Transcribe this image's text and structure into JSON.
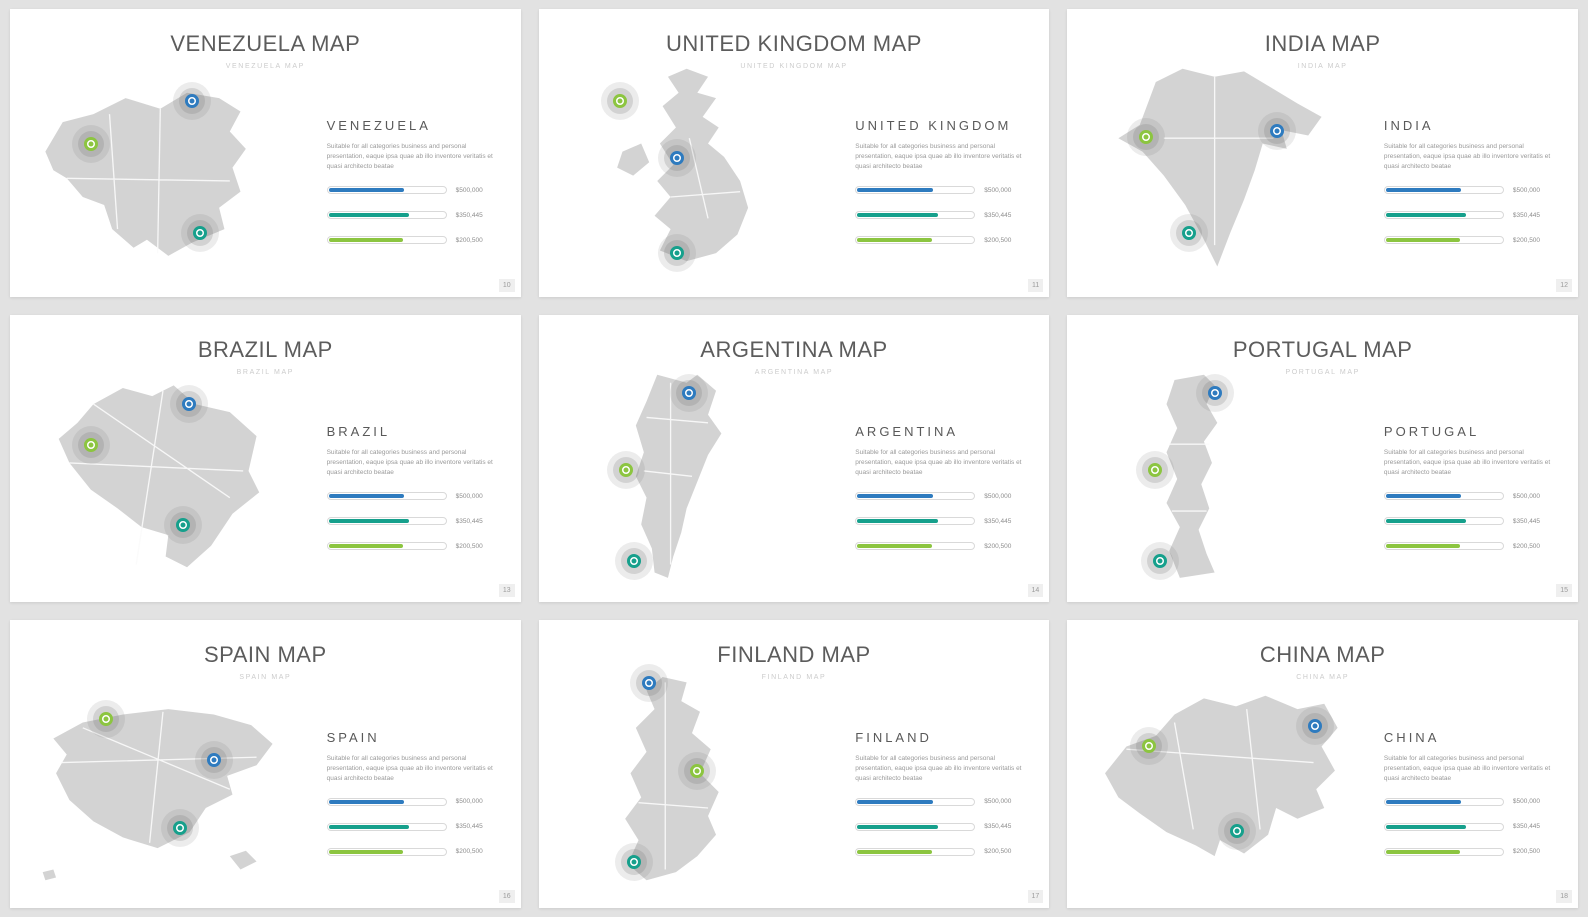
{
  "page": {
    "background": "#e2e2e2"
  },
  "shared": {
    "description": "Suitable for all categories business and personal presentation, eaque ipsa quae ab illo inventore veritatis et quasi architecto beatae",
    "bars": [
      {
        "value": "$500,000",
        "color": "#2e7bbf",
        "percent": 64
      },
      {
        "value": "$350,445",
        "color": "#16a08c",
        "percent": 68
      },
      {
        "value": "$200,500",
        "color": "#8cc540",
        "percent": 63
      }
    ],
    "marker_colors": {
      "blue": "#2e7bbf",
      "teal": "#16a08c",
      "green": "#8cc540"
    }
  },
  "slides": [
    {
      "id": "venezuela",
      "title": "VENEZUELA MAP",
      "subtitle": "VENEZUELA MAP",
      "country": "VENEZUELA",
      "page_number": "10",
      "markers": [
        {
          "color": "blue",
          "x": 60,
          "y": 19
        },
        {
          "color": "green",
          "x": 25,
          "y": 38
        },
        {
          "color": "teal",
          "x": 63,
          "y": 77
        }
      ]
    },
    {
      "id": "uk",
      "title": "UNITED KINGDOM MAP",
      "subtitle": "UNITED KINGDOM MAP",
      "country": "UNITED KINGDOM",
      "page_number": "11",
      "markers": [
        {
          "color": "green",
          "x": 25,
          "y": 19
        },
        {
          "color": "blue",
          "x": 45,
          "y": 44
        },
        {
          "color": "teal",
          "x": 45,
          "y": 86
        }
      ]
    },
    {
      "id": "india",
      "title": "INDIA MAP",
      "subtitle": "INDIA MAP",
      "country": "INDIA",
      "page_number": "12",
      "markers": [
        {
          "color": "green",
          "x": 24,
          "y": 35
        },
        {
          "color": "blue",
          "x": 70,
          "y": 32
        },
        {
          "color": "teal",
          "x": 39,
          "y": 77
        }
      ]
    },
    {
      "id": "brazil",
      "title": "BRAZIL MAP",
      "subtitle": "BRAZIL MAP",
      "country": "BRAZIL",
      "page_number": "13",
      "markers": [
        {
          "color": "blue",
          "x": 59,
          "y": 18
        },
        {
          "color": "green",
          "x": 25,
          "y": 36
        },
        {
          "color": "teal",
          "x": 57,
          "y": 71
        }
      ]
    },
    {
      "id": "argentina",
      "title": "ARGENTINA MAP",
      "subtitle": "ARGENTINA MAP",
      "country": "ARGENTINA",
      "page_number": "14",
      "markers": [
        {
          "color": "blue",
          "x": 49,
          "y": 13
        },
        {
          "color": "green",
          "x": 27,
          "y": 47
        },
        {
          "color": "teal",
          "x": 30,
          "y": 87
        }
      ]
    },
    {
      "id": "portugal",
      "title": "PORTUGAL MAP",
      "subtitle": "PORTUGAL MAP",
      "country": "PORTUGAL",
      "page_number": "15",
      "markers": [
        {
          "color": "blue",
          "x": 48,
          "y": 13
        },
        {
          "color": "green",
          "x": 27,
          "y": 47
        },
        {
          "color": "teal",
          "x": 29,
          "y": 87
        }
      ]
    },
    {
      "id": "spain",
      "title": "SPAIN MAP",
      "subtitle": "SPAIN MAP",
      "country": "SPAIN",
      "page_number": "16",
      "markers": [
        {
          "color": "green",
          "x": 30,
          "y": 22
        },
        {
          "color": "blue",
          "x": 68,
          "y": 40
        },
        {
          "color": "teal",
          "x": 56,
          "y": 70
        }
      ]
    },
    {
      "id": "finland",
      "title": "FINLAND MAP",
      "subtitle": "FINLAND MAP",
      "country": "FINLAND",
      "page_number": "17",
      "markers": [
        {
          "color": "blue",
          "x": 35,
          "y": 6
        },
        {
          "color": "green",
          "x": 52,
          "y": 45
        },
        {
          "color": "teal",
          "x": 30,
          "y": 85
        }
      ]
    },
    {
      "id": "china",
      "title": "CHINA MAP",
      "subtitle": "CHINA MAP",
      "country": "CHINA",
      "page_number": "18",
      "markers": [
        {
          "color": "green",
          "x": 25,
          "y": 34
        },
        {
          "color": "blue",
          "x": 83,
          "y": 25
        },
        {
          "color": "teal",
          "x": 56,
          "y": 71
        }
      ]
    }
  ]
}
